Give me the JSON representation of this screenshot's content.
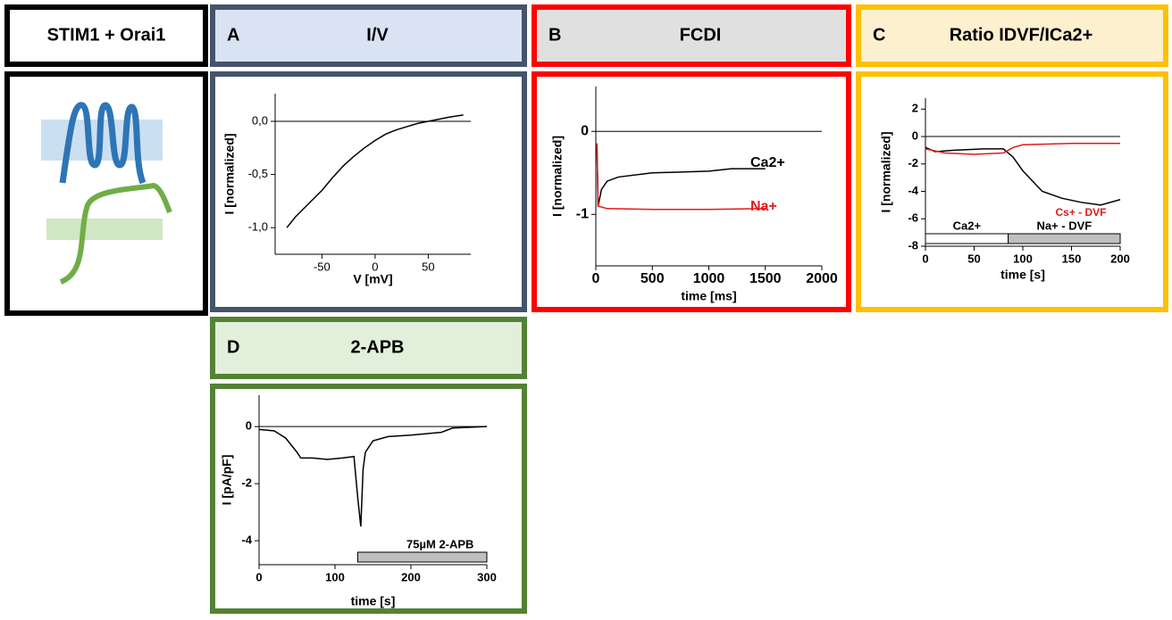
{
  "panel_header": "STIM1 + Orai1",
  "chart_data": [
    {
      "type": "line",
      "panel": "A",
      "title": "I/V",
      "xlabel": "V [mV]",
      "ylabel": "I [normalized]",
      "xlim": [
        -94,
        90
      ],
      "ylim": [
        -1.25,
        0.26
      ],
      "xticks": [
        -50,
        0,
        50
      ],
      "yticks": [
        {
          "value": 0,
          "label": "0,0"
        },
        {
          "value": -0.5,
          "label": "-0,5"
        },
        {
          "value": -1,
          "label": "-1,0"
        }
      ],
      "zero_line": true,
      "series": [
        {
          "color": "#000000",
          "x": [
            -83,
            -75,
            -60,
            -50,
            -40,
            -30,
            -20,
            -10,
            0,
            10,
            20,
            30,
            40,
            50,
            60,
            70,
            83
          ],
          "values": [
            -1.0,
            -0.9,
            -0.75,
            -0.65,
            -0.53,
            -0.42,
            -0.33,
            -0.25,
            -0.18,
            -0.12,
            -0.08,
            -0.05,
            -0.02,
            0.0,
            0.02,
            0.04,
            0.06
          ]
        }
      ]
    },
    {
      "type": "line",
      "panel": "B",
      "title": "FCDI",
      "xlabel": "time [ms]",
      "ylabel": "I [normalized]",
      "xlim": [
        0,
        2000
      ],
      "ylim": [
        -1.62,
        0.54
      ],
      "xticks": [
        0,
        500,
        1000,
        1500,
        2000
      ],
      "yticks": [
        0,
        -1
      ],
      "zero_line": true,
      "series": [
        {
          "name": "Ca2+",
          "color": "#000000",
          "x": [
            0,
            10,
            20,
            50,
            100,
            200,
            500,
            1000,
            1200,
            1500
          ],
          "values": [
            -0.15,
            -0.15,
            -0.9,
            -0.7,
            -0.6,
            -0.55,
            -0.5,
            -0.48,
            -0.45,
            -0.45
          ]
        },
        {
          "name": "Na+",
          "color": "#e31a1c",
          "x": [
            0,
            10,
            20,
            100,
            500,
            1000,
            1500
          ],
          "values": [
            -0.15,
            -0.15,
            -0.9,
            -0.93,
            -0.94,
            -0.94,
            -0.93
          ]
        }
      ]
    },
    {
      "type": "line",
      "panel": "C",
      "title": "Ratio IDVF/ICa2+",
      "xlabel": "time [s]",
      "ylabel": "I [normalized]",
      "xlim": [
        0,
        200
      ],
      "ylim": [
        -8,
        2.8
      ],
      "xticks": [
        0,
        50,
        100,
        150,
        200
      ],
      "yticks": [
        2,
        0,
        -2,
        -4,
        -6,
        -8
      ],
      "zero_line": true,
      "series": [
        {
          "color": "#000000",
          "x": [
            0,
            10,
            30,
            60,
            80,
            90,
            100,
            120,
            140,
            160,
            180,
            200
          ],
          "values": [
            -0.8,
            -1.1,
            -1.0,
            -0.9,
            -0.9,
            -1.5,
            -2.5,
            -4,
            -4.5,
            -4.8,
            -5,
            -4.6
          ]
        },
        {
          "name": "Cs+ - DVF",
          "color": "#e31a1c",
          "x": [
            0,
            20,
            50,
            80,
            90,
            100,
            150,
            200
          ],
          "values": [
            -0.9,
            -1.2,
            -1.3,
            -1.2,
            -0.8,
            -0.6,
            -0.5,
            -0.5
          ]
        }
      ],
      "bars": [
        {
          "label": "Ca2+",
          "start": 0,
          "end": 85,
          "color": "#ffffff"
        },
        {
          "label": "Na+ - DVF",
          "start": 85,
          "end": 200,
          "color": "#bfbfbf"
        }
      ]
    },
    {
      "type": "line",
      "panel": "D",
      "title": "2-APB",
      "xlabel": "time [s]",
      "ylabel": "I [pA/pF]",
      "xlim": [
        0,
        300
      ],
      "ylim": [
        -4.84,
        1.1
      ],
      "xticks": [
        0,
        100,
        200,
        300
      ],
      "yticks": [
        0,
        -2,
        -4
      ],
      "zero_line": true,
      "series": [
        {
          "color": "#000000",
          "x": [
            0,
            20,
            35,
            50,
            55,
            70,
            90,
            110,
            125,
            130,
            134,
            137,
            140,
            150,
            170,
            200,
            240,
            255,
            300
          ],
          "values": [
            -0.1,
            -0.15,
            -0.4,
            -0.9,
            -1.1,
            -1.1,
            -1.15,
            -1.1,
            -1.05,
            -2.5,
            -3.5,
            -1.5,
            -0.9,
            -0.5,
            -0.35,
            -0.3,
            -0.2,
            -0.05,
            0
          ]
        }
      ],
      "bars": [
        {
          "label": "75µM 2-APB",
          "start": 130,
          "end": 300,
          "color": "#bfbfbf"
        }
      ]
    }
  ]
}
